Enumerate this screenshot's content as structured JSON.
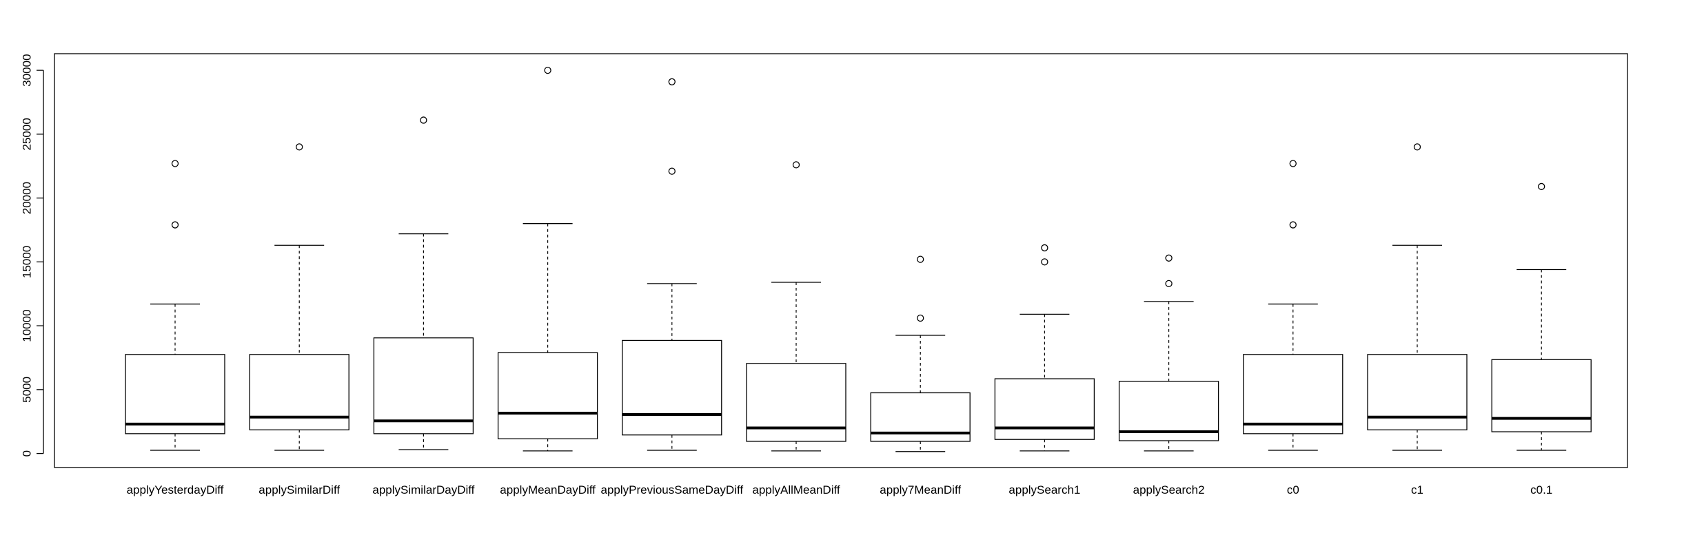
{
  "chart_data": {
    "type": "boxplot",
    "title": "",
    "xlabel": "",
    "ylabel": "",
    "ylim": [
      -1100,
      31300
    ],
    "yticks": [
      0,
      5000,
      10000,
      15000,
      20000,
      25000,
      30000
    ],
    "ytick_labels": [
      "0",
      "5000",
      "10000",
      "15000",
      "20000",
      "25000",
      "30000"
    ],
    "grid": false,
    "legend": "none",
    "categories": [
      "applyYesterdayDiff",
      "applySimilarDiff",
      "applySimilarDayDiff",
      "applyMeanDayDiff",
      "applyPreviousSameDayDiff",
      "applyAllMeanDiff",
      "apply7MeanDiff",
      "applySearch1",
      "applySearch2",
      "c0",
      "c1",
      "c0.1"
    ],
    "boxes": [
      {
        "whisker_low": 250,
        "q1": 1550,
        "median": 2300,
        "q3": 7750,
        "whisker_high": 11700,
        "outliers": [
          17900,
          22700
        ]
      },
      {
        "whisker_low": 250,
        "q1": 1850,
        "median": 2850,
        "q3": 7750,
        "whisker_high": 16300,
        "outliers": [
          24000
        ]
      },
      {
        "whisker_low": 300,
        "q1": 1550,
        "median": 2550,
        "q3": 9050,
        "whisker_high": 17200,
        "outliers": [
          26100
        ]
      },
      {
        "whisker_low": 200,
        "q1": 1150,
        "median": 3150,
        "q3": 7900,
        "whisker_high": 18000,
        "outliers": [
          30000
        ]
      },
      {
        "whisker_low": 250,
        "q1": 1450,
        "median": 3050,
        "q3": 8850,
        "whisker_high": 13300,
        "outliers": [
          22100,
          29100
        ]
      },
      {
        "whisker_low": 200,
        "q1": 950,
        "median": 2000,
        "q3": 7050,
        "whisker_high": 13400,
        "outliers": [
          22600
        ]
      },
      {
        "whisker_low": 150,
        "q1": 950,
        "median": 1600,
        "q3": 4750,
        "whisker_high": 9250,
        "outliers": [
          10600,
          15200
        ]
      },
      {
        "whisker_low": 200,
        "q1": 1100,
        "median": 2000,
        "q3": 5850,
        "whisker_high": 10900,
        "outliers": [
          15000,
          16100
        ]
      },
      {
        "whisker_low": 200,
        "q1": 1000,
        "median": 1700,
        "q3": 5650,
        "whisker_high": 11900,
        "outliers": [
          13300,
          15300
        ]
      },
      {
        "whisker_low": 250,
        "q1": 1550,
        "median": 2300,
        "q3": 7750,
        "whisker_high": 11700,
        "outliers": [
          17900,
          22700
        ]
      },
      {
        "whisker_low": 250,
        "q1": 1850,
        "median": 2850,
        "q3": 7750,
        "whisker_high": 16300,
        "outliers": [
          24000
        ]
      },
      {
        "whisker_low": 250,
        "q1": 1700,
        "median": 2750,
        "q3": 7350,
        "whisker_high": 14400,
        "outliers": [
          20900
        ]
      }
    ]
  }
}
